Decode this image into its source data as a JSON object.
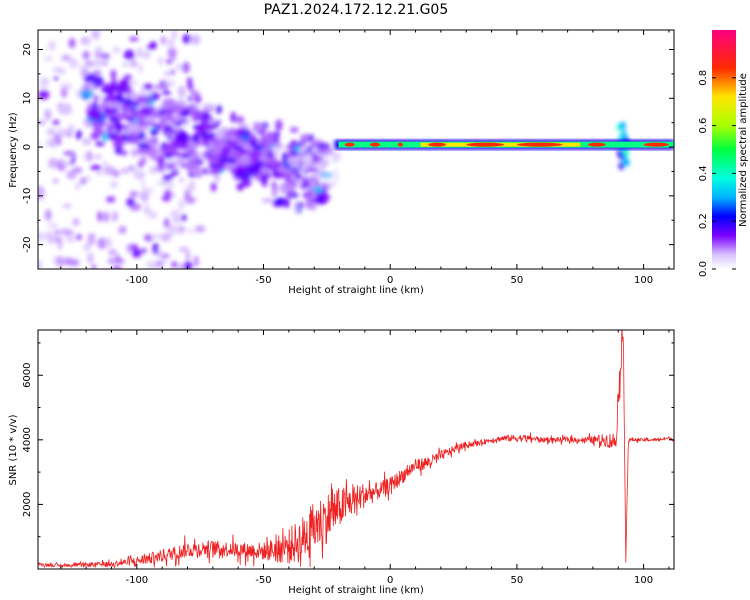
{
  "title": "PAZ1.2024.172.12.21.G05",
  "chart_data": [
    {
      "type": "heatmap",
      "xlabel": "Height of straight line (km)",
      "ylabel": "Frequency (Hz)",
      "xlim": [
        -139,
        112
      ],
      "ylim": [
        -25,
        24
      ],
      "xticks": [
        -100,
        -50,
        0,
        50,
        100
      ],
      "yticks": [
        -20,
        -10,
        0,
        10,
        20
      ],
      "grid": false,
      "colorbar": {
        "label": "Normalized spectral amplitude",
        "range": [
          0,
          1
        ],
        "ticks": [
          "0.0",
          "0.2",
          "0.4",
          "0.6",
          "0.8"
        ],
        "colormap": "gist_ncar",
        "stops": [
          {
            "v": 0.0,
            "color": "#ffffff"
          },
          {
            "v": 0.06,
            "color": "#d9c2ff"
          },
          {
            "v": 0.14,
            "color": "#7a00ff"
          },
          {
            "v": 0.22,
            "color": "#0000ff"
          },
          {
            "v": 0.3,
            "color": "#00b4ff"
          },
          {
            "v": 0.38,
            "color": "#00ffe0"
          },
          {
            "v": 0.5,
            "color": "#00ff40"
          },
          {
            "v": 0.6,
            "color": "#aaff00"
          },
          {
            "v": 0.72,
            "color": "#ffe600"
          },
          {
            "v": 0.84,
            "color": "#ff2a00"
          },
          {
            "v": 1.0,
            "color": "#ff0080"
          }
        ]
      },
      "features": [
        {
          "name": "scattered noise region",
          "x": [
            -139,
            -95
          ],
          "freq": [
            -25,
            24
          ],
          "amplitude": 0.1
        },
        {
          "name": "noisy diagonal band",
          "x": [
            -120,
            -25
          ],
          "freq_start": 9,
          "freq_end": -6,
          "amplitude": 0.2
        },
        {
          "name": "narrow signal line",
          "x": [
            -22,
            112
          ],
          "freq": 0.5,
          "amplitude": 0.8
        },
        {
          "name": "signal disturbance",
          "x": 92,
          "freq": [
            -4,
            5
          ],
          "amplitude": 0.4
        }
      ]
    },
    {
      "type": "line",
      "xlabel": "Height of straight line (km)",
      "ylabel": "SNR (10 * v/v)",
      "xlim": [
        -139,
        112
      ],
      "ylim": [
        0,
        7400
      ],
      "xticks": [
        -100,
        -50,
        0,
        50,
        100
      ],
      "yticks": [
        2000,
        4000,
        6000
      ],
      "grid": false,
      "series": [
        {
          "color": "#ee2222",
          "x": [
            -139,
            -130,
            -120,
            -110,
            -100,
            -90,
            -80,
            -70,
            -60,
            -50,
            -45,
            -40,
            -35,
            -30,
            -25,
            -20,
            -15,
            -10,
            -5,
            0,
            5,
            10,
            15,
            20,
            25,
            30,
            35,
            40,
            45,
            50,
            55,
            60,
            65,
            70,
            75,
            80,
            85,
            89,
            91,
            92,
            93,
            94,
            96,
            100,
            105,
            110,
            112
          ],
          "y": [
            150,
            100,
            130,
            150,
            250,
            400,
            600,
            650,
            600,
            550,
            600,
            700,
            900,
            1300,
            1600,
            1900,
            2100,
            2300,
            2400,
            2600,
            2900,
            3200,
            3300,
            3500,
            3700,
            3850,
            3900,
            4000,
            4050,
            4050,
            4050,
            4000,
            4000,
            4000,
            4000,
            4000,
            4000,
            3950,
            6500,
            7300,
            400,
            4000,
            4000,
            4000,
            4000,
            4050,
            4000
          ],
          "noise": [
            60,
            60,
            80,
            100,
            180,
            250,
            300,
            300,
            300,
            350,
            500,
            700,
            900,
            1000,
            1000,
            800,
            600,
            500,
            350,
            300,
            300,
            250,
            250,
            200,
            150,
            120,
            100,
            100,
            120,
            150,
            120,
            100,
            100,
            100,
            100,
            150,
            250,
            400,
            600,
            300,
            300,
            80,
            60,
            60,
            60,
            60,
            60
          ]
        }
      ]
    }
  ]
}
